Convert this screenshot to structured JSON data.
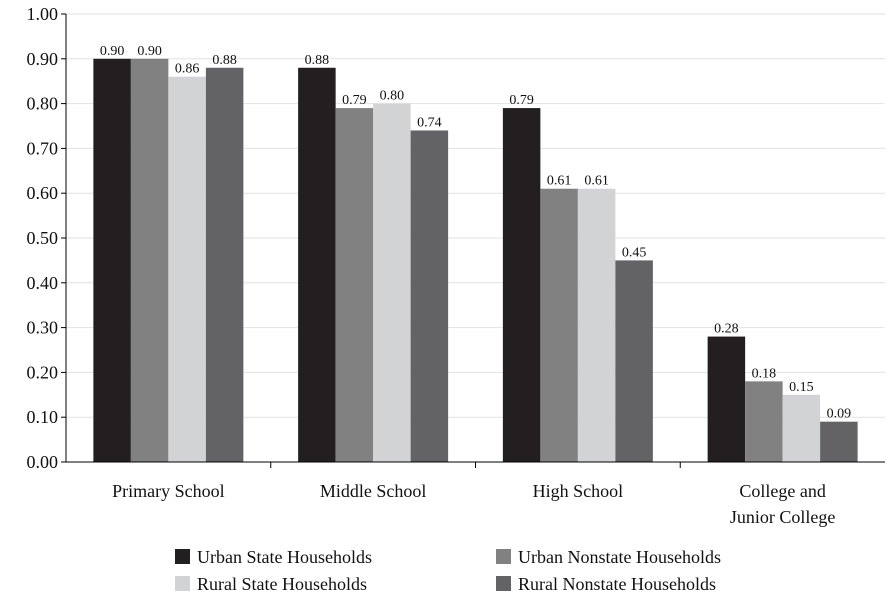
{
  "chart_data": {
    "type": "bar",
    "categories": [
      [
        "Primary School"
      ],
      [
        "Middle School"
      ],
      [
        "High School"
      ],
      [
        "College and",
        "Junior College"
      ]
    ],
    "series": [
      {
        "name": "Urban State Households",
        "color": "#231f20",
        "values": [
          0.9,
          0.88,
          0.79,
          0.28
        ]
      },
      {
        "name": "Urban Nonstate Households",
        "color": "#818181",
        "values": [
          0.9,
          0.79,
          0.61,
          0.18
        ]
      },
      {
        "name": "Rural State Households",
        "color": "#d2d3d5",
        "values": [
          0.86,
          0.8,
          0.61,
          0.15
        ]
      },
      {
        "name": "Rural Nonstate Households",
        "color": "#636365",
        "values": [
          0.88,
          0.74,
          0.45,
          0.09
        ]
      }
    ],
    "ylim": [
      0,
      1.0
    ],
    "yticks": [
      0.0,
      0.1,
      0.2,
      0.3,
      0.4,
      0.5,
      0.6,
      0.7,
      0.8,
      0.9,
      1.0
    ],
    "grid": true,
    "legend_position": "bottom"
  }
}
